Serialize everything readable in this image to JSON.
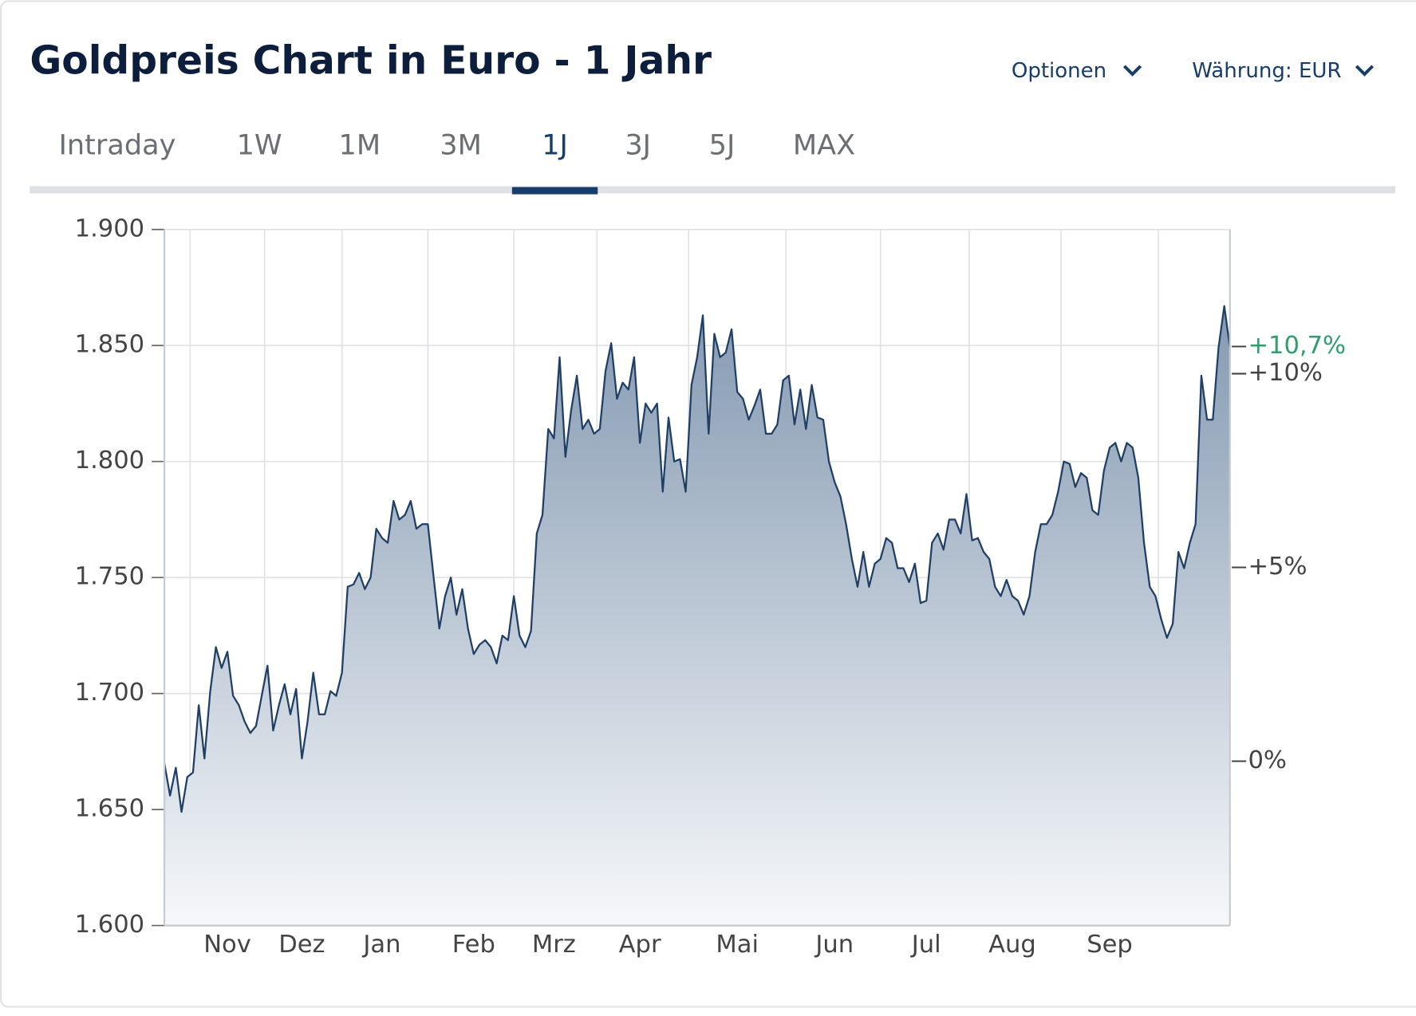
{
  "header": {
    "title": "Goldpreis Chart in Euro - 1 Jahr",
    "options": "Optionen",
    "currency": "Währung: EUR"
  },
  "tabs": {
    "items": [
      "Intraday",
      "1W",
      "1M",
      "3M",
      "1J",
      "3J",
      "5J",
      "MAX"
    ],
    "active": 4
  },
  "chart_data": {
    "type": "area",
    "categories": [
      null,
      null,
      null,
      null,
      null,
      null,
      null,
      null,
      null,
      null,
      null,
      "Nov",
      null,
      null,
      null,
      null,
      null,
      null,
      null,
      null,
      null,
      null,
      null,
      null,
      "Dez",
      null,
      null,
      null,
      null,
      null,
      null,
      null,
      null,
      null,
      null,
      null,
      null,
      null,
      "Jan",
      null,
      null,
      null,
      null,
      null,
      null,
      null,
      null,
      null,
      null,
      null,
      null,
      null,
      null,
      null,
      "Feb",
      null,
      null,
      null,
      null,
      null,
      null,
      null,
      null,
      null,
      null,
      null,
      null,
      null,
      "Mrz",
      null,
      null,
      null,
      null,
      null,
      null,
      null,
      null,
      null,
      null,
      null,
      null,
      null,
      null,
      "Apr",
      null,
      null,
      null,
      null,
      null,
      null,
      null,
      null,
      null,
      null,
      null,
      null,
      null,
      null,
      null,
      null,
      "Mai",
      null,
      null,
      null,
      null,
      null,
      null,
      null,
      null,
      null,
      null,
      null,
      null,
      null,
      null,
      null,
      null,
      "Jun",
      null,
      null,
      null,
      null,
      null,
      null,
      null,
      null,
      null,
      null,
      null,
      null,
      null,
      null,
      null,
      "Jul",
      null,
      null,
      null,
      null,
      null,
      null,
      null,
      null,
      null,
      null,
      null,
      null,
      null,
      null,
      "Aug",
      null,
      null,
      null,
      null,
      null,
      null,
      null,
      null,
      null,
      null,
      null,
      null,
      null,
      null,
      null,
      null,
      "Sep",
      null,
      null,
      null,
      null,
      null,
      null,
      null,
      null,
      null,
      null,
      null,
      null,
      null,
      null,
      null,
      null,
      null,
      null,
      null,
      null,
      null
    ],
    "values": [
      1670,
      1656,
      1668,
      1649,
      1664,
      1666,
      1695,
      1672,
      1701,
      1720,
      1711,
      1718,
      1699,
      1695,
      1688,
      1683,
      1686,
      1699,
      1712,
      1684,
      1695,
      1704,
      1691,
      1702,
      1672,
      1688,
      1709,
      1691,
      1691,
      1701,
      1699,
      1709,
      1746,
      1747,
      1752,
      1745,
      1750,
      1771,
      1767,
      1765,
      1783,
      1775,
      1777,
      1783,
      1771,
      1773,
      1773,
      1750,
      1728,
      1742,
      1750,
      1734,
      1745,
      1728,
      1717,
      1721,
      1723,
      1720,
      1713,
      1725,
      1723,
      1742,
      1725,
      1720,
      1727,
      1769,
      1777,
      1814,
      1810,
      1845,
      1802,
      1822,
      1837,
      1814,
      1818,
      1812,
      1814,
      1839,
      1851,
      1827,
      1834,
      1831,
      1845,
      1808,
      1825,
      1821,
      1825,
      1787,
      1819,
      1800,
      1801,
      1787,
      1833,
      1845,
      1863,
      1812,
      1855,
      1845,
      1847,
      1857,
      1830,
      1827,
      1818,
      1824,
      1831,
      1812,
      1812,
      1816,
      1835,
      1837,
      1816,
      1831,
      1814,
      1833,
      1819,
      1818,
      1800,
      1791,
      1785,
      1773,
      1758,
      1746,
      1761,
      1746,
      1756,
      1758,
      1767,
      1765,
      1754,
      1754,
      1748,
      1756,
      1739,
      1740,
      1765,
      1769,
      1762,
      1775,
      1775,
      1769,
      1786,
      1766,
      1767,
      1761,
      1758,
      1746,
      1742,
      1749,
      1742,
      1740,
      1734,
      1742,
      1761,
      1773,
      1773,
      1777,
      1787,
      1800,
      1799,
      1789,
      1795,
      1793,
      1779,
      1777,
      1796,
      1806,
      1808,
      1800,
      1808,
      1806,
      1793,
      1765,
      1746,
      1742,
      1732,
      1724,
      1730,
      1761,
      1754,
      1765,
      1773,
      1837,
      1818,
      1818,
      1849,
      1867,
      1849
    ],
    "color": "#1f3f66",
    "ylim": [
      1600,
      1900
    ],
    "yticks": [
      {
        "value": 1600,
        "label": "1.600"
      },
      {
        "value": 1650,
        "label": "1.650"
      },
      {
        "value": 1700,
        "label": "1.700"
      },
      {
        "value": 1750,
        "label": "1.750"
      },
      {
        "value": 1800,
        "label": "1.800"
      },
      {
        "value": 1850,
        "label": "1.850"
      },
      {
        "value": 1900,
        "label": "1.900"
      }
    ],
    "y2lim": [
      -4.24,
      13.72
    ],
    "y2ticks": [
      {
        "value": 0,
        "label": "0%"
      },
      {
        "value": 5,
        "label": "+5%"
      },
      {
        "value": 10,
        "label": "+10%"
      }
    ],
    "current_change": {
      "value": 10.7,
      "label": "+10,7%",
      "color": "#2e9e6b"
    },
    "grid": true
  }
}
